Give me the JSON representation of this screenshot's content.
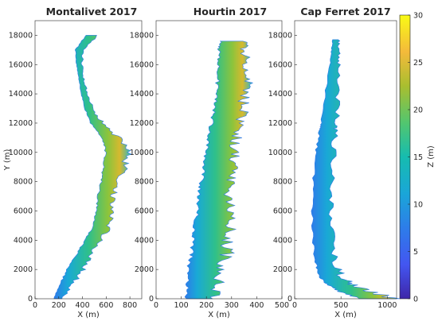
{
  "chart_data": {
    "type": "heatmap",
    "colorbar": {
      "label": "Z (m)",
      "range": [
        0,
        30
      ],
      "ticks": [
        "0",
        "5",
        "10",
        "15",
        "20",
        "25",
        "30"
      ],
      "colormap": "parula"
    },
    "panels": [
      {
        "title": "Montalivet 2017",
        "xlabel": "X (m)",
        "ylabel": "Y (m)",
        "xlim": [
          0,
          900
        ],
        "ylim": [
          0,
          19000
        ],
        "xticks": [
          "0",
          "200",
          "400",
          "600",
          "800"
        ],
        "yticks": [
          "0",
          "2000",
          "4000",
          "6000",
          "8000",
          "10000",
          "12000",
          "14000",
          "16000",
          "18000"
        ],
        "profile": [
          {
            "y": 0,
            "x_shore": 160,
            "width": 60
          },
          {
            "y": 1000,
            "x_shore": 210,
            "width": 100
          },
          {
            "y": 2000,
            "x_shore": 270,
            "width": 120
          },
          {
            "y": 3000,
            "x_shore": 350,
            "width": 110
          },
          {
            "y": 4000,
            "x_shore": 420,
            "width": 120
          },
          {
            "y": 5000,
            "x_shore": 490,
            "width": 130
          },
          {
            "y": 6000,
            "x_shore": 520,
            "width": 110
          },
          {
            "y": 7000,
            "x_shore": 530,
            "width": 120
          },
          {
            "y": 8000,
            "x_shore": 560,
            "width": 140
          },
          {
            "y": 9000,
            "x_shore": 580,
            "width": 160
          },
          {
            "y": 10000,
            "x_shore": 600,
            "width": 170
          },
          {
            "y": 11000,
            "x_shore": 560,
            "width": 130
          },
          {
            "y": 12000,
            "x_shore": 470,
            "width": 90
          },
          {
            "y": 13000,
            "x_shore": 420,
            "width": 60
          },
          {
            "y": 14000,
            "x_shore": 390,
            "width": 50
          },
          {
            "y": 15000,
            "x_shore": 370,
            "width": 40
          },
          {
            "y": 16000,
            "x_shore": 350,
            "width": 40
          },
          {
            "y": 17000,
            "x_shore": 340,
            "width": 60
          },
          {
            "y": 18000,
            "x_shore": 430,
            "width": 90
          }
        ]
      },
      {
        "title": "Hourtin 2017",
        "xlabel": "X (m)",
        "ylabel": "",
        "xlim": [
          0,
          500
        ],
        "ylim": [
          0,
          19000
        ],
        "xticks": [
          "0",
          "100",
          "200",
          "300",
          "400",
          "500"
        ],
        "yticks": [
          "0",
          "2000",
          "4000",
          "6000",
          "8000",
          "10000",
          "12000",
          "14000",
          "16000",
          "18000"
        ],
        "profile": [
          {
            "y": 0,
            "x_shore": 120,
            "width": 100
          },
          {
            "y": 1000,
            "x_shore": 125,
            "width": 110
          },
          {
            "y": 2000,
            "x_shore": 130,
            "width": 120
          },
          {
            "y": 3000,
            "x_shore": 140,
            "width": 130
          },
          {
            "y": 4000,
            "x_shore": 150,
            "width": 120
          },
          {
            "y": 5000,
            "x_shore": 155,
            "width": 130
          },
          {
            "y": 6000,
            "x_shore": 165,
            "width": 120
          },
          {
            "y": 7000,
            "x_shore": 170,
            "width": 110
          },
          {
            "y": 8000,
            "x_shore": 180,
            "width": 110
          },
          {
            "y": 9000,
            "x_shore": 190,
            "width": 110
          },
          {
            "y": 10000,
            "x_shore": 200,
            "width": 100
          },
          {
            "y": 11000,
            "x_shore": 210,
            "width": 100
          },
          {
            "y": 12000,
            "x_shore": 220,
            "width": 110
          },
          {
            "y": 13000,
            "x_shore": 230,
            "width": 110
          },
          {
            "y": 14000,
            "x_shore": 240,
            "width": 100
          },
          {
            "y": 15000,
            "x_shore": 245,
            "width": 120
          },
          {
            "y": 16000,
            "x_shore": 250,
            "width": 100
          },
          {
            "y": 17000,
            "x_shore": 250,
            "width": 90
          },
          {
            "y": 17600,
            "x_shore": 255,
            "width": 90
          }
        ]
      },
      {
        "title": "Cap Ferret 2017",
        "xlabel": "X (m)",
        "ylabel": "",
        "xlim": [
          0,
          1100
        ],
        "ylim": [
          0,
          19000
        ],
        "xticks": [
          "0",
          "500",
          "1000"
        ],
        "yticks": [
          "0",
          "2000",
          "4000",
          "6000",
          "8000",
          "10000",
          "12000",
          "14000",
          "16000",
          "18000"
        ],
        "profile": [
          {
            "y": 0,
            "x_shore": 700,
            "width": 350
          },
          {
            "y": 500,
            "x_shore": 480,
            "width": 300
          },
          {
            "y": 1000,
            "x_shore": 350,
            "width": 250
          },
          {
            "y": 1500,
            "x_shore": 270,
            "width": 220
          },
          {
            "y": 2500,
            "x_shore": 220,
            "width": 200
          },
          {
            "y": 4000,
            "x_shore": 200,
            "width": 180
          },
          {
            "y": 6000,
            "x_shore": 190,
            "width": 190
          },
          {
            "y": 8000,
            "x_shore": 200,
            "width": 190
          },
          {
            "y": 10000,
            "x_shore": 230,
            "width": 170
          },
          {
            "y": 11500,
            "x_shore": 270,
            "width": 170
          },
          {
            "y": 12000,
            "x_shore": 290,
            "width": 150
          },
          {
            "y": 14000,
            "x_shore": 330,
            "width": 120
          },
          {
            "y": 16000,
            "x_shore": 380,
            "width": 90
          },
          {
            "y": 17000,
            "x_shore": 400,
            "width": 70
          },
          {
            "y": 17700,
            "x_shore": 410,
            "width": 60
          }
        ]
      }
    ]
  }
}
